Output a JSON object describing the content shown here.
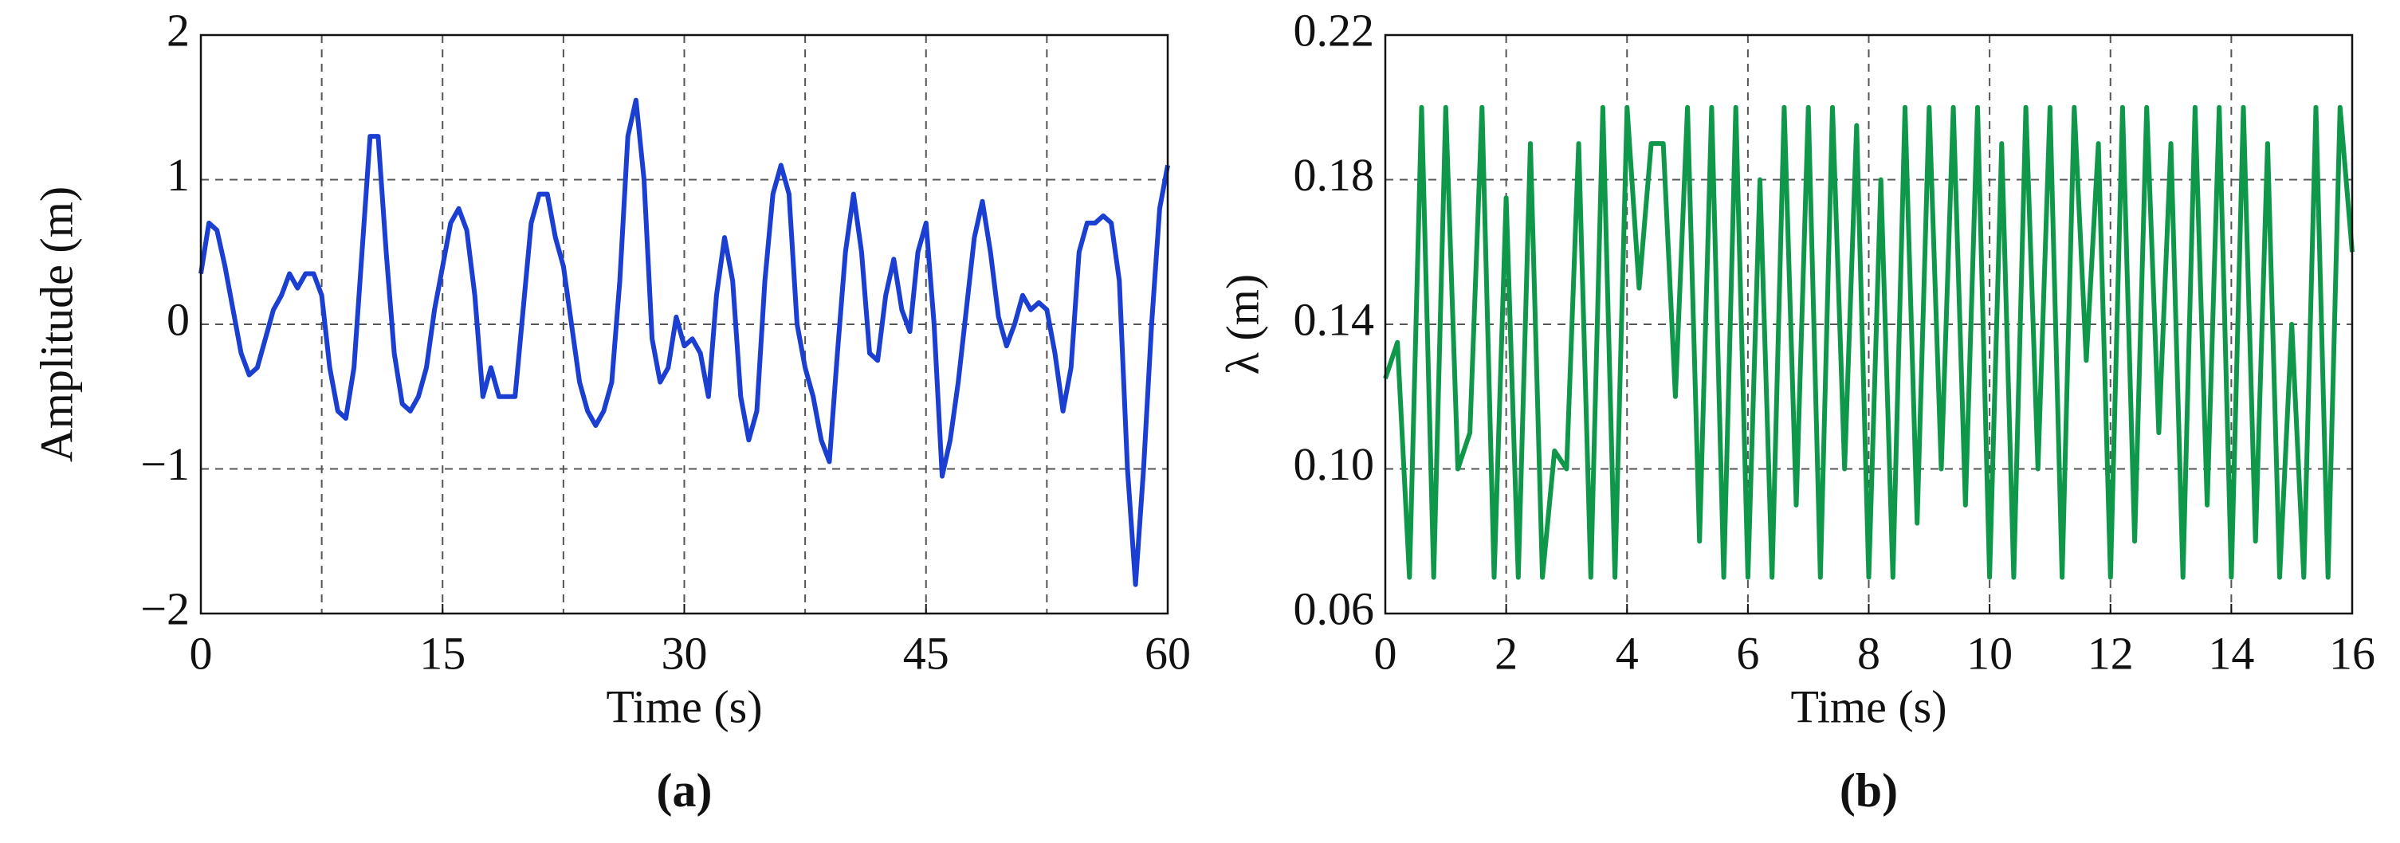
{
  "chart_data": [
    {
      "type": "line",
      "xlabel": "Time (s)",
      "ylabel": "Amplitude (m)",
      "caption": "(a)",
      "color": "#1a3fd1",
      "xlim": [
        0,
        60
      ],
      "xticks": [
        0,
        15,
        30,
        45,
        60
      ],
      "xgrid": [
        7.5,
        15,
        22.5,
        30,
        37.5,
        45,
        52.5
      ],
      "ylim": [
        -2,
        2
      ],
      "yticks": [
        2,
        1,
        0,
        {
          "value": -1,
          "label": "−1"
        },
        {
          "value": -2,
          "label": "−2"
        }
      ],
      "grid": true,
      "x": [
        0,
        0.5,
        1,
        1.5,
        2,
        2.5,
        3,
        3.5,
        4,
        4.5,
        5,
        5.5,
        6,
        6.5,
        7,
        7.5,
        8,
        8.5,
        9,
        9.5,
        10,
        10.5,
        11,
        11.5,
        12,
        12.5,
        13,
        13.5,
        14,
        14.5,
        15,
        15.5,
        16,
        16.5,
        17,
        17.5,
        18,
        18.5,
        19,
        19.5,
        20,
        20.5,
        21,
        21.5,
        22,
        22.5,
        23,
        23.5,
        24,
        24.5,
        25,
        25.5,
        26,
        26.5,
        27,
        27.5,
        28,
        28.5,
        29,
        29.5,
        30,
        30.5,
        31,
        31.5,
        32,
        32.5,
        33,
        33.5,
        34,
        34.5,
        35,
        35.5,
        36,
        36.5,
        37,
        37.5,
        38,
        38.5,
        39,
        39.5,
        40,
        40.5,
        41,
        41.5,
        42,
        42.5,
        43,
        43.5,
        44,
        44.5,
        45,
        45.5,
        46,
        46.5,
        47,
        47.5,
        48,
        48.5,
        49,
        49.5,
        50,
        50.5,
        51,
        51.5,
        52,
        52.5,
        53,
        53.5,
        54,
        54.5,
        55,
        55.5,
        56,
        56.5,
        57,
        57.5,
        58,
        58.5,
        59,
        59.5,
        60
      ],
      "values": [
        0.35,
        0.7,
        0.65,
        0.4,
        0.1,
        -0.2,
        -0.35,
        -0.3,
        -0.1,
        0.1,
        0.2,
        0.35,
        0.25,
        0.35,
        0.35,
        0.2,
        -0.3,
        -0.6,
        -0.65,
        -0.3,
        0.5,
        1.3,
        1.3,
        0.5,
        -0.2,
        -0.55,
        -0.6,
        -0.5,
        -0.3,
        0.1,
        0.4,
        0.7,
        0.8,
        0.65,
        0.2,
        -0.5,
        -0.3,
        -0.5,
        -0.5,
        -0.5,
        0.1,
        0.7,
        0.9,
        0.9,
        0.6,
        0.4,
        0.0,
        -0.4,
        -0.6,
        -0.7,
        -0.6,
        -0.4,
        0.3,
        1.3,
        1.55,
        1.0,
        -0.1,
        -0.4,
        -0.3,
        0.05,
        -0.15,
        -0.1,
        -0.2,
        -0.5,
        0.2,
        0.6,
        0.3,
        -0.5,
        -0.8,
        -0.6,
        0.3,
        0.9,
        1.1,
        0.9,
        0.0,
        -0.3,
        -0.5,
        -0.8,
        -0.95,
        -0.2,
        0.5,
        0.9,
        0.5,
        -0.2,
        -0.25,
        0.2,
        0.45,
        0.1,
        -0.05,
        0.5,
        0.7,
        0.0,
        -1.05,
        -0.8,
        -0.4,
        0.1,
        0.6,
        0.85,
        0.5,
        0.05,
        -0.15,
        0.0,
        0.2,
        0.1,
        0.15,
        0.1,
        -0.2,
        -0.6,
        -0.3,
        0.5,
        0.7,
        0.7,
        0.75,
        0.7,
        0.3,
        -1.0,
        -1.8,
        -1.0,
        0.0,
        0.8,
        1.1
      ]
    },
    {
      "type": "line",
      "xlabel": "Time (s)",
      "ylabel": "λ (m)",
      "caption": "(b)",
      "color": "#10984a",
      "xlim": [
        0,
        16
      ],
      "xticks": [
        0,
        2,
        4,
        6,
        8,
        10,
        12,
        14,
        16
      ],
      "xgrid": [
        2,
        4,
        6,
        8,
        10,
        12,
        14
      ],
      "ylim": [
        0.06,
        0.22
      ],
      "yticks": [
        0.22,
        0.18,
        0.14,
        {
          "value": 0.1,
          "label": "0.10"
        },
        0.06
      ],
      "grid": true,
      "x": [
        0,
        0.2,
        0.4,
        0.6,
        0.8,
        1,
        1.2,
        1.4,
        1.6,
        1.8,
        2,
        2.2,
        2.4,
        2.6,
        2.8,
        3,
        3.2,
        3.4,
        3.6,
        3.8,
        4,
        4.2,
        4.4,
        4.6,
        4.8,
        5,
        5.2,
        5.4,
        5.6,
        5.8,
        6,
        6.2,
        6.4,
        6.6,
        6.8,
        7,
        7.2,
        7.4,
        7.6,
        7.8,
        8,
        8.2,
        8.4,
        8.6,
        8.8,
        9,
        9.2,
        9.4,
        9.6,
        9.8,
        10,
        10.2,
        10.4,
        10.6,
        10.8,
        11,
        11.2,
        11.4,
        11.6,
        11.8,
        12,
        12.2,
        12.4,
        12.6,
        12.8,
        13,
        13.2,
        13.4,
        13.6,
        13.8,
        14,
        14.2,
        14.4,
        14.6,
        14.8,
        15,
        15.2,
        15.4,
        15.6,
        15.8,
        16
      ],
      "values": [
        0.125,
        0.135,
        0.07,
        0.2,
        0.07,
        0.2,
        0.1,
        0.11,
        0.2,
        0.07,
        0.175,
        0.07,
        0.19,
        0.07,
        0.105,
        0.1,
        0.19,
        0.07,
        0.2,
        0.07,
        0.2,
        0.15,
        0.19,
        0.19,
        0.12,
        0.2,
        0.08,
        0.2,
        0.07,
        0.2,
        0.07,
        0.18,
        0.07,
        0.2,
        0.09,
        0.2,
        0.07,
        0.2,
        0.1,
        0.195,
        0.07,
        0.18,
        0.07,
        0.2,
        0.085,
        0.2,
        0.1,
        0.2,
        0.09,
        0.2,
        0.07,
        0.19,
        0.07,
        0.2,
        0.1,
        0.2,
        0.07,
        0.2,
        0.13,
        0.19,
        0.07,
        0.2,
        0.08,
        0.2,
        0.11,
        0.19,
        0.07,
        0.2,
        0.09,
        0.2,
        0.07,
        0.2,
        0.08,
        0.19,
        0.07,
        0.14,
        0.07,
        0.2,
        0.07,
        0.2,
        0.16
      ]
    }
  ]
}
